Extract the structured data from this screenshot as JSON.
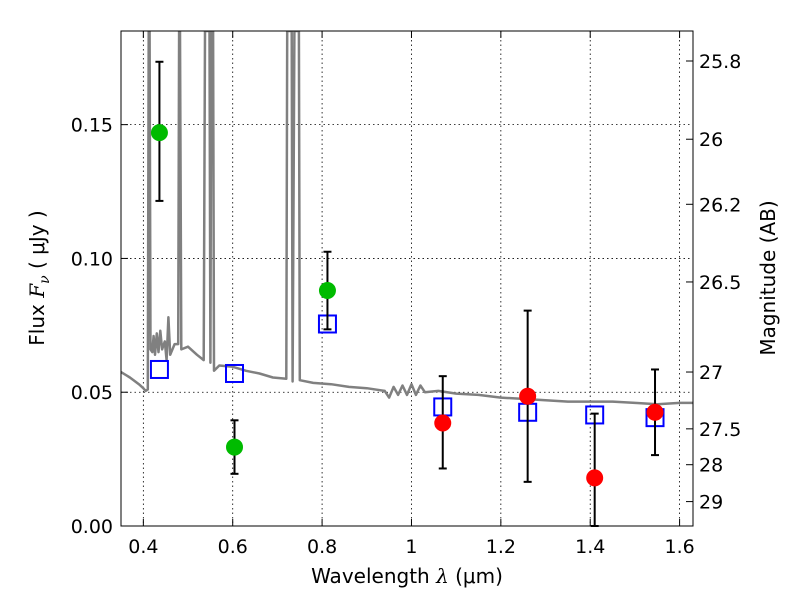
{
  "chart_data": {
    "type": "scatter",
    "title": "",
    "xlabel": {
      "prefix": "Wavelength  ",
      "symbol": "λ",
      "unit": " (μm)"
    },
    "ylabel": {
      "prefix": "Flux  ",
      "symbol": "F",
      "subscript": "ν",
      "unit": "  ( μJy )"
    },
    "y2label": "Magnitude (AB)",
    "xlim": [
      0.35,
      1.63
    ],
    "ylim": [
      0.0,
      0.185
    ],
    "x_ticks": [
      {
        "value": 0.4,
        "label": "0.4"
      },
      {
        "value": 0.6,
        "label": "0.6"
      },
      {
        "value": 0.8,
        "label": "0.8"
      },
      {
        "value": 1.0,
        "label": "1"
      },
      {
        "value": 1.2,
        "label": "1.2"
      },
      {
        "value": 1.4,
        "label": "1.4"
      },
      {
        "value": 1.6,
        "label": "1.6"
      }
    ],
    "y_ticks": [
      {
        "value": 0.0,
        "label": "0.00"
      },
      {
        "value": 0.05,
        "label": "0.05"
      },
      {
        "value": 0.1,
        "label": "0.10"
      },
      {
        "value": 0.15,
        "label": "0.15"
      }
    ],
    "y2_ticks": [
      {
        "value": 25.8,
        "label": "25.8"
      },
      {
        "value": 26.0,
        "label": "26"
      },
      {
        "value": 26.2,
        "label": "26.2"
      },
      {
        "value": 26.5,
        "label": "26.5"
      },
      {
        "value": 27.0,
        "label": "27"
      },
      {
        "value": 27.5,
        "label": "27.5"
      },
      {
        "value": 28.0,
        "label": "28"
      },
      {
        "value": 29.0,
        "label": "29"
      }
    ],
    "grid": true,
    "colors": {
      "spectrum": "#808080",
      "model": "#0000ff",
      "green_points": "#00bb00",
      "red_points": "#ff0000",
      "errorbar": "#000000"
    },
    "series": [
      {
        "kind": "line",
        "color_key": "spectrum",
        "points": [
          [
            0.35,
            0.0575
          ],
          [
            0.37,
            0.0555
          ],
          [
            0.39,
            0.053
          ],
          [
            0.4,
            0.0515
          ],
          [
            0.405,
            0.0505
          ],
          [
            0.41,
            0.051
          ],
          [
            0.412,
            0.185
          ],
          [
            0.414,
            0.185
          ],
          [
            0.416,
            0.066
          ],
          [
            0.42,
            0.065
          ],
          [
            0.423,
            0.071
          ],
          [
            0.426,
            0.064
          ],
          [
            0.43,
            0.072
          ],
          [
            0.434,
            0.065
          ],
          [
            0.438,
            0.073
          ],
          [
            0.442,
            0.066
          ],
          [
            0.448,
            0.069
          ],
          [
            0.452,
            0.062
          ],
          [
            0.456,
            0.078
          ],
          [
            0.46,
            0.064
          ],
          [
            0.47,
            0.068
          ],
          [
            0.478,
            0.068
          ],
          [
            0.48,
            0.185
          ],
          [
            0.482,
            0.185
          ],
          [
            0.485,
            0.066
          ],
          [
            0.5,
            0.067
          ],
          [
            0.52,
            0.064
          ],
          [
            0.535,
            0.062
          ],
          [
            0.538,
            0.185
          ],
          [
            0.548,
            0.185
          ],
          [
            0.55,
            0.061
          ],
          [
            0.552,
            0.185
          ],
          [
            0.556,
            0.185
          ],
          [
            0.558,
            0.058
          ],
          [
            0.57,
            0.06
          ],
          [
            0.6,
            0.0595
          ],
          [
            0.63,
            0.058
          ],
          [
            0.66,
            0.057
          ],
          [
            0.69,
            0.0555
          ],
          [
            0.72,
            0.055
          ],
          [
            0.722,
            0.185
          ],
          [
            0.732,
            0.185
          ],
          [
            0.734,
            0.054
          ],
          [
            0.738,
            0.185
          ],
          [
            0.748,
            0.185
          ],
          [
            0.75,
            0.0545
          ],
          [
            0.78,
            0.0535
          ],
          [
            0.82,
            0.053
          ],
          [
            0.86,
            0.052
          ],
          [
            0.9,
            0.0515
          ],
          [
            0.94,
            0.0505
          ],
          [
            0.95,
            0.048
          ],
          [
            0.96,
            0.052
          ],
          [
            0.97,
            0.049
          ],
          [
            0.98,
            0.0525
          ],
          [
            0.99,
            0.049
          ],
          [
            1.0,
            0.053
          ],
          [
            1.01,
            0.049
          ],
          [
            1.02,
            0.0525
          ],
          [
            1.03,
            0.05
          ],
          [
            1.06,
            0.0505
          ],
          [
            1.1,
            0.0495
          ],
          [
            1.15,
            0.049
          ],
          [
            1.2,
            0.048
          ],
          [
            1.25,
            0.0475
          ],
          [
            1.3,
            0.047
          ],
          [
            1.35,
            0.0465
          ],
          [
            1.4,
            0.0465
          ],
          [
            1.45,
            0.0465
          ],
          [
            1.5,
            0.046
          ],
          [
            1.55,
            0.0455
          ],
          [
            1.6,
            0.046
          ],
          [
            1.63,
            0.046
          ]
        ]
      },
      {
        "kind": "open-square",
        "color_key": "model",
        "points": [
          [
            0.436,
            0.0585
          ],
          [
            0.604,
            0.057
          ],
          [
            0.812,
            0.0755
          ],
          [
            1.07,
            0.0445
          ],
          [
            1.26,
            0.0425
          ],
          [
            1.41,
            0.0415
          ],
          [
            1.545,
            0.0405
          ]
        ]
      },
      {
        "kind": "filled-circle",
        "color_key": "green_points",
        "points": [
          {
            "x": 0.436,
            "y": 0.147,
            "yerr_low": 0.1215,
            "yerr_high": 0.1735
          },
          {
            "x": 0.604,
            "y": 0.0295,
            "yerr_low": 0.0195,
            "yerr_high": 0.0395
          },
          {
            "x": 0.812,
            "y": 0.088,
            "yerr_low": 0.0735,
            "yerr_high": 0.1025
          }
        ]
      },
      {
        "kind": "filled-circle",
        "color_key": "red_points",
        "points": [
          {
            "x": 1.07,
            "y": 0.0385,
            "yerr_low": 0.0215,
            "yerr_high": 0.056
          },
          {
            "x": 1.26,
            "y": 0.0485,
            "yerr_low": 0.0165,
            "yerr_high": 0.0805
          },
          {
            "x": 1.41,
            "y": 0.018,
            "yerr_low": 0.0,
            "yerr_high": 0.042
          },
          {
            "x": 1.545,
            "y": 0.0425,
            "yerr_low": 0.0265,
            "yerr_high": 0.0585
          }
        ]
      }
    ]
  }
}
